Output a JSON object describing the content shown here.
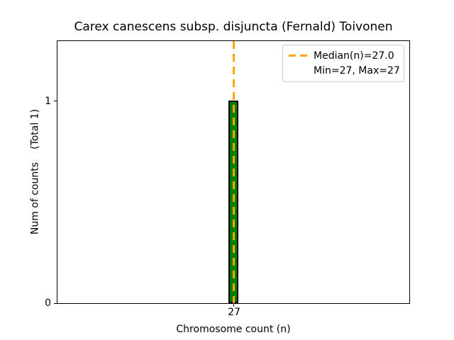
{
  "title": "Carex canescens subsp. disjuncta (Fernald) Toivonen",
  "axes": {
    "xlabel": "Chromosome count (n)",
    "ylabel_part1": "Num of counts",
    "ylabel_part2": "(Total 1)",
    "x_ticks": [
      "27"
    ],
    "y_ticks": [
      "0",
      "1"
    ]
  },
  "legend": {
    "line1": "Median(n)=27.0",
    "line2": "Min=27, Max=27"
  },
  "colors": {
    "bar_fill": "#008000",
    "bar_edge": "#000000",
    "median_line": "#FFA500",
    "legend_border": "#cccccc",
    "text": "#000000",
    "background": "#ffffff"
  },
  "chart_data": {
    "type": "bar",
    "title": "Carex canescens subsp. disjuncta (Fernald) Toivonen",
    "xlabel": "Chromosome count (n)",
    "ylabel": "Num of counts    (Total 1)",
    "categories": [
      27
    ],
    "values": [
      1
    ],
    "total_counts": 1,
    "median": 27.0,
    "min": 27,
    "max": 27,
    "ylim": [
      0,
      1.3
    ],
    "y_tick_values": [
      0,
      1
    ],
    "grid": false,
    "bar_color": "#008000",
    "bar_edge_color": "#000000",
    "median_line": {
      "value": 27.0,
      "color": "#FFA500",
      "style": "dashed",
      "orientation": "vertical"
    },
    "legend_entries": [
      "Median(n)=27.0",
      "Min=27, Max=27"
    ],
    "legend_position": "upper right"
  }
}
